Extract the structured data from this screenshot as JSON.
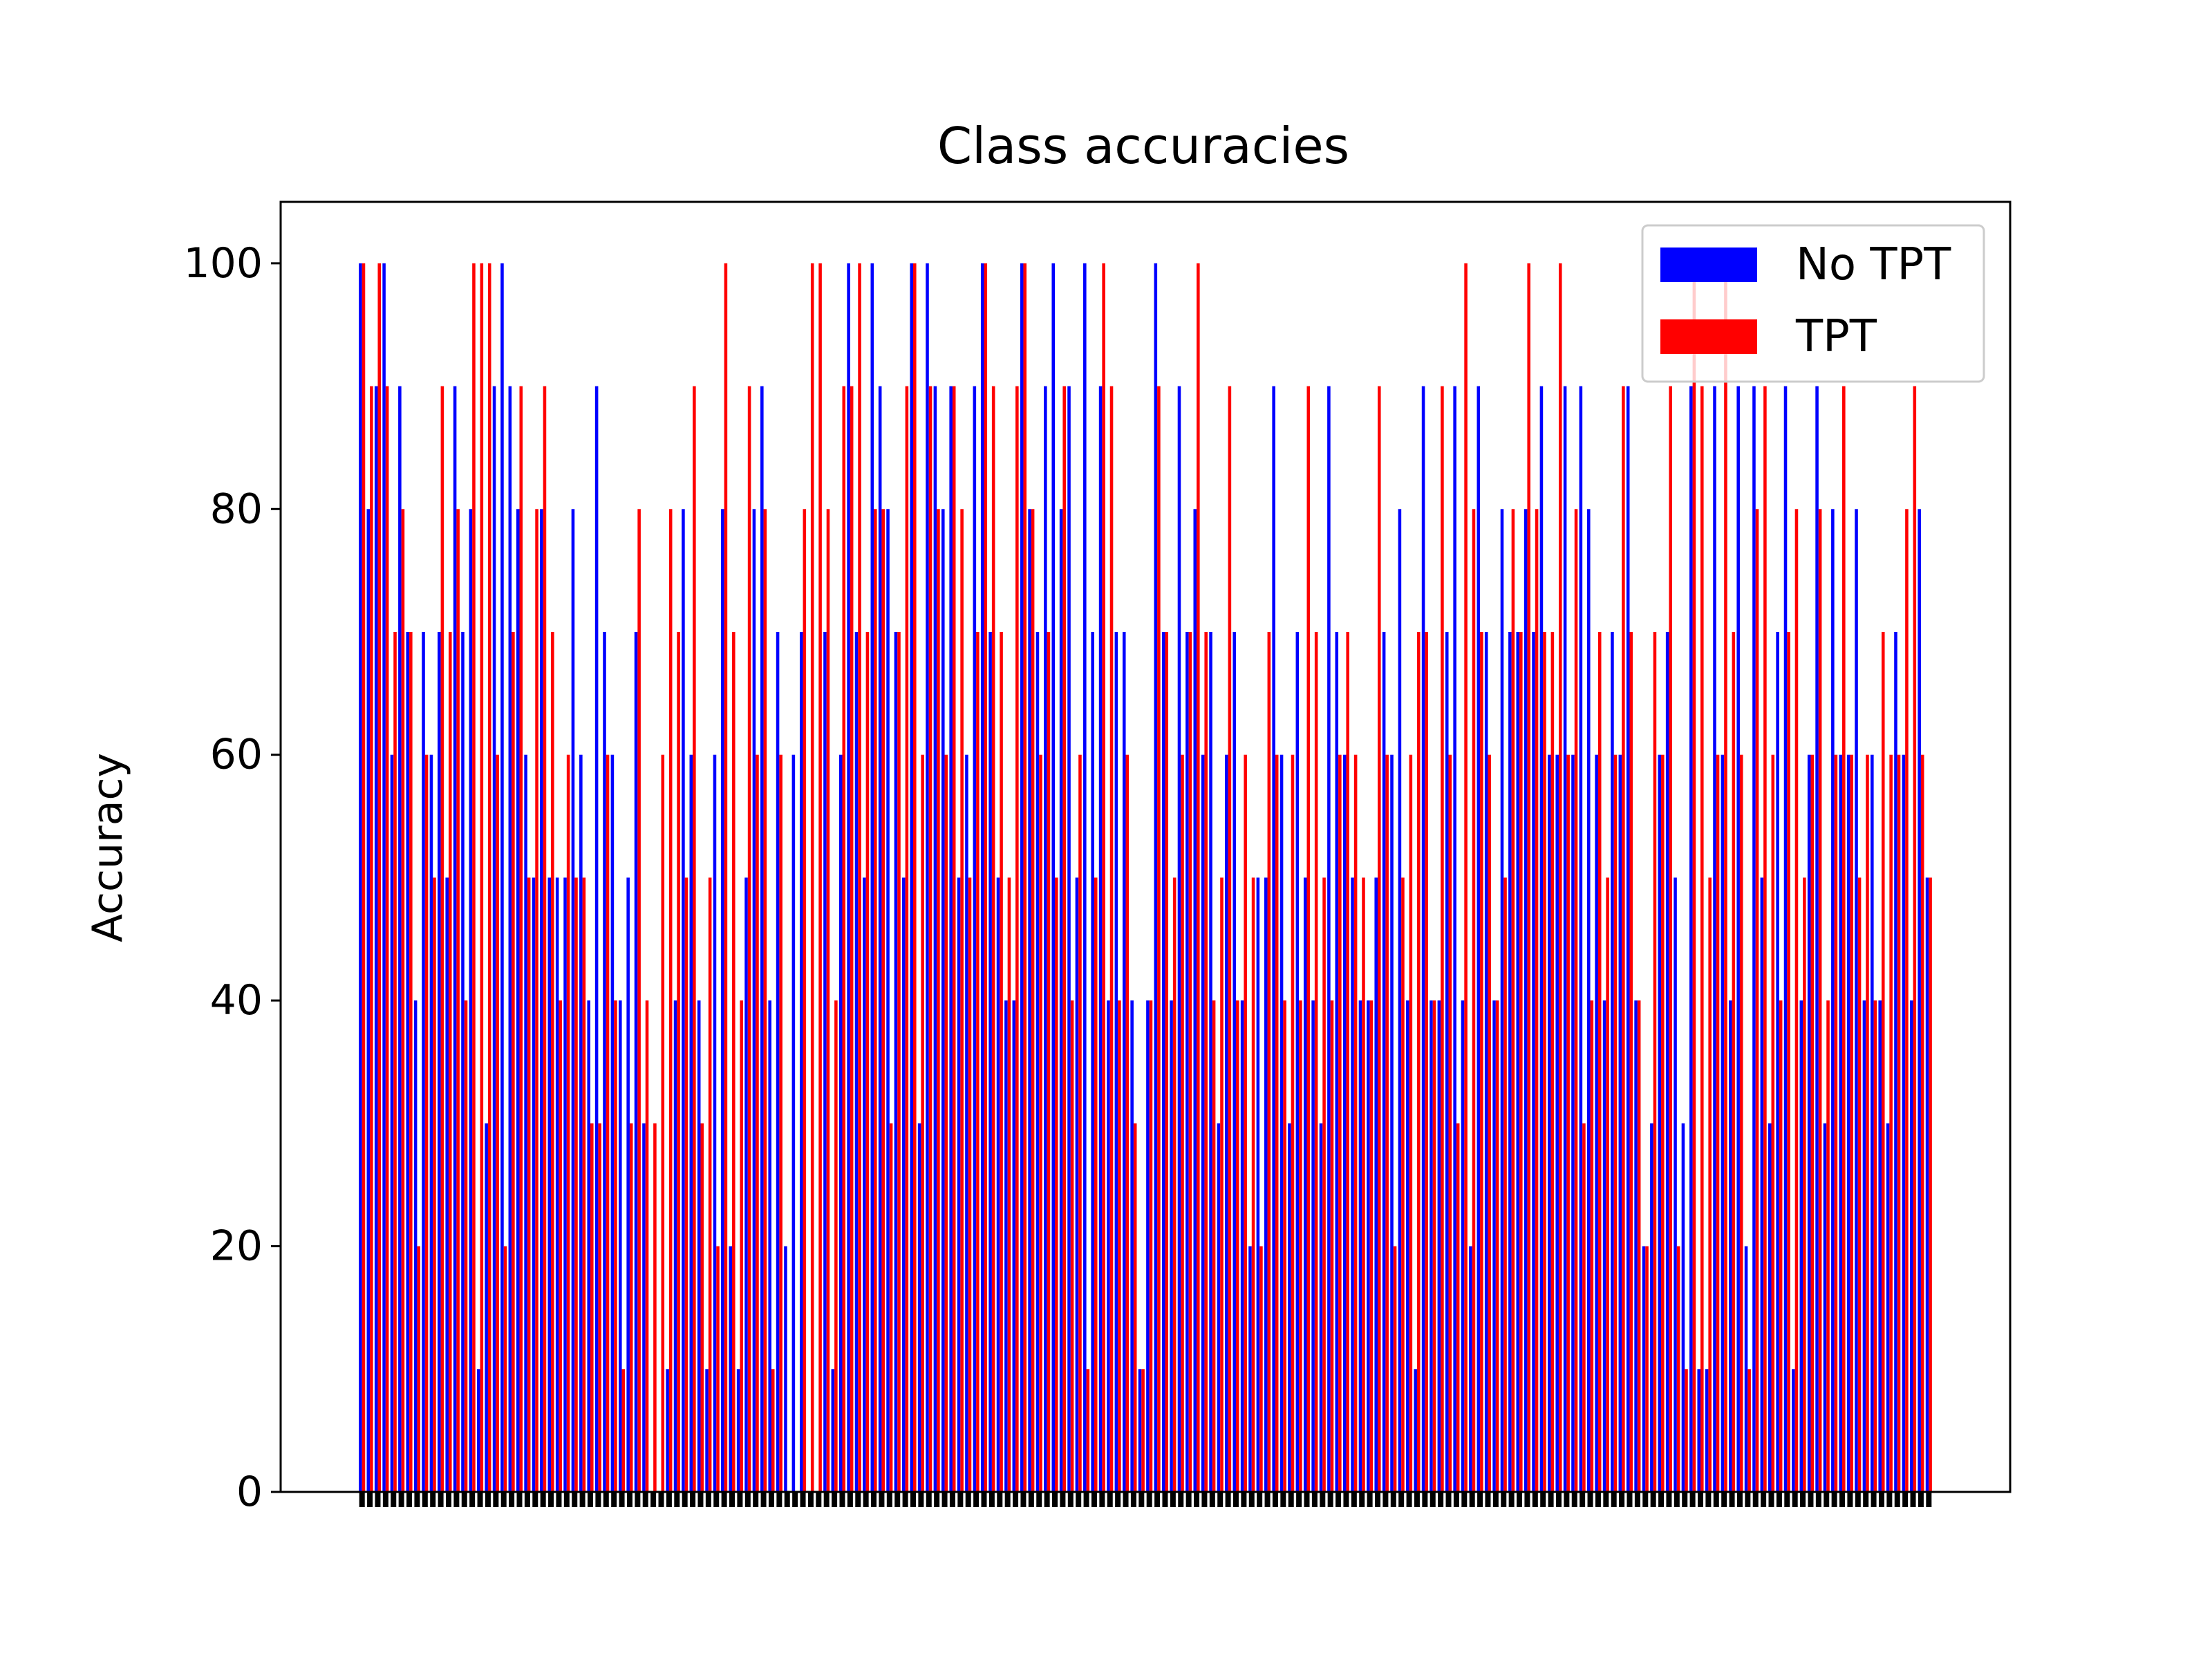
{
  "chart_data": {
    "type": "bar",
    "title": "Class accuracies",
    "xlabel": "",
    "ylabel": "Accuracy",
    "ylim": [
      0,
      105
    ],
    "yticks": [
      0,
      20,
      40,
      60,
      80,
      100
    ],
    "grid": false,
    "legend_position": "top-right",
    "num_classes": 200,
    "series": [
      {
        "name": "No TPT",
        "color": "#0000ff",
        "values": [
          100,
          80,
          90,
          100,
          60,
          90,
          70,
          40,
          70,
          60,
          70,
          50,
          90,
          70,
          80,
          10,
          30,
          90,
          100,
          90,
          80,
          60,
          50,
          80,
          50,
          50,
          50,
          80,
          60,
          40,
          90,
          70,
          60,
          40,
          50,
          70,
          30,
          0,
          0,
          10,
          40,
          80,
          60,
          40,
          10,
          60,
          80,
          20,
          10,
          50,
          80,
          90,
          40,
          70,
          20,
          60,
          70,
          0,
          0,
          70,
          10,
          60,
          100,
          70,
          50,
          100,
          90,
          80,
          70,
          50,
          100,
          30,
          100,
          90,
          80,
          90,
          50,
          60,
          90,
          100,
          70,
          50,
          40,
          40,
          100,
          80,
          70,
          90,
          100,
          80,
          90,
          50,
          100,
          70,
          90,
          40,
          70,
          70,
          40,
          10,
          40,
          100,
          70,
          40,
          90,
          70,
          80,
          60,
          70,
          30,
          60,
          70,
          40,
          20,
          50,
          50,
          90,
          60,
          30,
          70,
          50,
          40,
          30,
          90,
          70,
          60,
          50,
          40,
          40,
          50,
          70,
          60,
          80,
          40,
          10,
          90,
          40,
          40,
          70,
          90,
          40,
          20,
          90,
          70,
          40,
          80,
          70,
          70,
          80,
          70,
          90,
          60,
          60,
          90,
          60,
          90,
          80,
          60,
          40,
          70,
          60,
          90,
          40,
          20,
          30,
          60,
          70,
          50,
          30,
          90,
          10,
          10,
          90,
          60,
          40,
          90,
          20,
          90,
          50,
          30,
          70,
          90,
          10,
          40,
          60,
          90,
          30,
          80,
          60,
          60,
          80,
          40,
          60,
          40,
          30,
          70,
          60,
          40,
          80,
          50
        ]
      },
      {
        "name": "TPT",
        "color": "#ff0000",
        "values": [
          100,
          90,
          100,
          90,
          70,
          80,
          70,
          20,
          60,
          50,
          90,
          70,
          80,
          40,
          100,
          100,
          100,
          60,
          20,
          70,
          90,
          50,
          80,
          90,
          70,
          40,
          60,
          50,
          50,
          30,
          30,
          60,
          40,
          10,
          30,
          80,
          40,
          30,
          60,
          80,
          70,
          50,
          90,
          30,
          50,
          20,
          100,
          70,
          40,
          90,
          60,
          80,
          10,
          60,
          0,
          0,
          80,
          100,
          100,
          80,
          40,
          90,
          90,
          100,
          70,
          80,
          80,
          30,
          70,
          90,
          100,
          60,
          90,
          80,
          60,
          90,
          80,
          50,
          70,
          100,
          90,
          70,
          50,
          90,
          100,
          80,
          60,
          70,
          50,
          90,
          40,
          60,
          10,
          50,
          100,
          90,
          40,
          60,
          30,
          10,
          40,
          90,
          70,
          50,
          60,
          70,
          100,
          70,
          40,
          50,
          90,
          40,
          60,
          50,
          20,
          70,
          60,
          40,
          60,
          40,
          90,
          70,
          50,
          40,
          60,
          70,
          60,
          50,
          40,
          90,
          60,
          20,
          50,
          60,
          70,
          70,
          40,
          90,
          60,
          30,
          100,
          80,
          70,
          60,
          40,
          50,
          80,
          70,
          100,
          80,
          70,
          70,
          100,
          60,
          80,
          30,
          40,
          70,
          50,
          60,
          90,
          70,
          40,
          20,
          70,
          60,
          90,
          20,
          10,
          100,
          90,
          50,
          60,
          100,
          70,
          60,
          10,
          80,
          90,
          60,
          40,
          70,
          80,
          50,
          60,
          80,
          40,
          60,
          90,
          60,
          50,
          60,
          40,
          70,
          60,
          60,
          80,
          90,
          60,
          50
        ]
      }
    ]
  }
}
